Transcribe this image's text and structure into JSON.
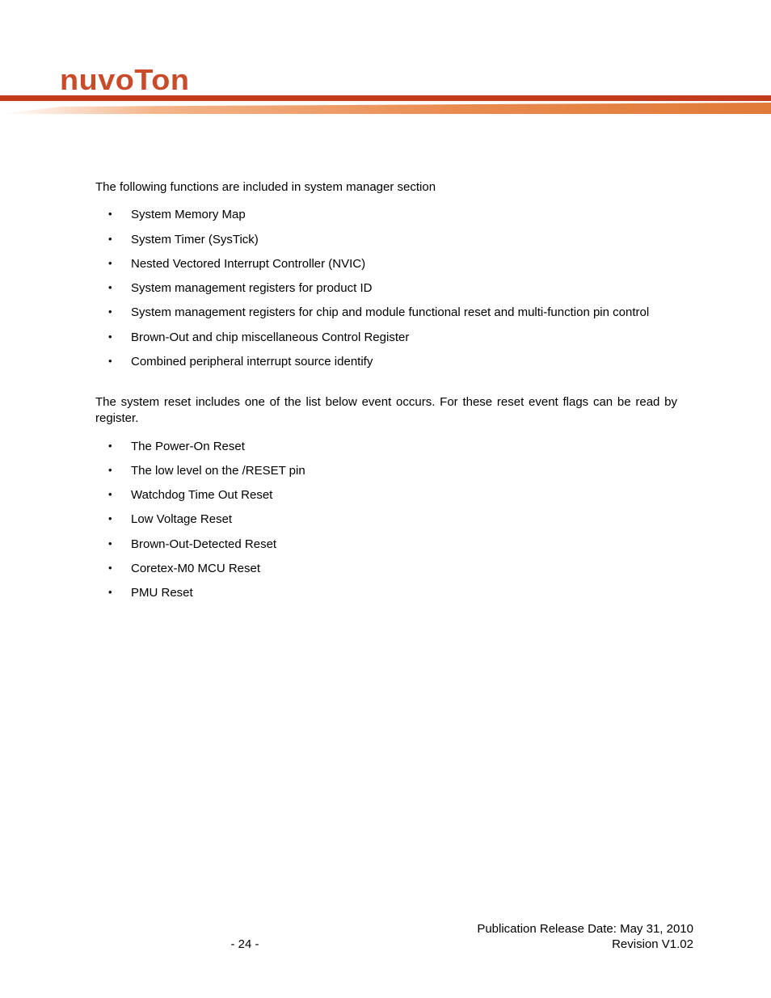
{
  "brand": {
    "name": "nuvoTon",
    "color": "#c84b2a"
  },
  "header_bar": {
    "red": "#c23b1c",
    "orange_from": "#f4b48a",
    "orange_to": "#e07a38"
  },
  "section1": {
    "intro": "The following functions are included in system manager section",
    "items": [
      "System Memory Map",
      "System Timer (SysTick)",
      "Nested Vectored Interrupt Controller (NVIC)",
      "System management registers for product ID",
      "System management registers for chip and module functional reset and multi-function pin control",
      "Brown-Out and chip miscellaneous Control Register",
      "Combined peripheral interrupt source identify"
    ]
  },
  "section2": {
    "intro": "The system reset includes one of the list below event occurs. For these reset event flags can be read by             register.",
    "items": [
      "The Power-On Reset",
      "The low level on the /RESET  pin",
      "Watchdog Time Out Reset",
      "Low Voltage Reset",
      "Brown-Out-Detected Reset",
      "Coretex-M0 MCU Reset",
      "PMU Reset"
    ]
  },
  "footer": {
    "release": "Publication Release Date: May 31, 2010",
    "page": "- 24 -",
    "revision": "Revision V1.02"
  }
}
